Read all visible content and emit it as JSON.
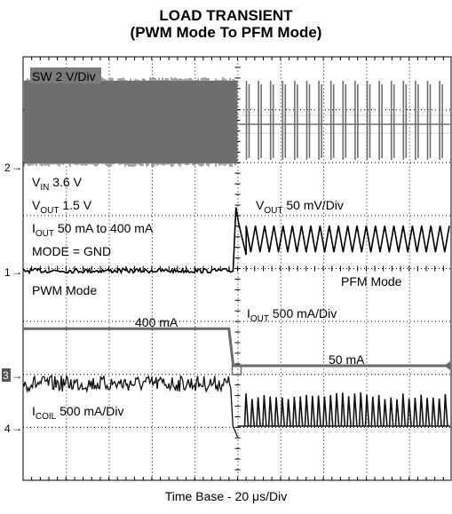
{
  "title": {
    "line1": "LOAD TRANSIENT",
    "line2": "(PWM Mode To PFM Mode)"
  },
  "timebase": {
    "prefix": "Time Base - 20 ",
    "mu": "μ",
    "suffix": "s/Div"
  },
  "chart_data": {
    "type": "line",
    "x": {
      "unit": "us",
      "per_division": 20,
      "divisions": 10,
      "range": [
        0,
        200
      ],
      "load_step_at": 100
    },
    "grid": true,
    "series": [
      {
        "name": "SW",
        "marker": "2",
        "scale": "2 V/Div",
        "segments": [
          {
            "x_range": [
              0,
              100
            ],
            "behavior": "continuous PWM switching (dense band)"
          },
          {
            "x_range": [
              100,
              200
            ],
            "behavior": "PFM burst switching"
          }
        ]
      },
      {
        "name": "VOUT",
        "marker": "1",
        "scale": "50 mV/Div",
        "segments": [
          {
            "x_range": [
              0,
              98
            ],
            "behavior": "flat with noise"
          },
          {
            "x_range": [
              98,
              104
            ],
            "behavior": "overshoot spike ~ +1.2 div"
          },
          {
            "x_range": [
              104,
              200
            ],
            "behavior": "PFM ripple ~0.5 div peak-to-peak, offset +0.6 div"
          }
        ]
      },
      {
        "name": "IOUT",
        "marker": "3",
        "scale": "500 mA/Div",
        "levels": [
          {
            "x_range": [
              0,
              96
            ],
            "value_mA": 400
          },
          {
            "x_range": [
              98,
              200
            ],
            "value_mA": 50
          }
        ]
      },
      {
        "name": "ICOIL",
        "marker": "4",
        "scale": "500 mA/Div",
        "segments": [
          {
            "x_range": [
              0,
              97
            ],
            "behavior": "dense switching band around 400 mA"
          },
          {
            "x_range": [
              97,
              100
            ],
            "behavior": "drop to zero"
          },
          {
            "x_range": [
              100,
              200
            ],
            "behavior": "PFM current pulses"
          }
        ]
      }
    ]
  },
  "labels": {
    "sw": "SW 2 V/Div",
    "vin_main": "V",
    "vin_sub": "IN",
    "vin_val": " 3.6 V",
    "vout_main": "V",
    "vout_sub": "OUT",
    "vout_val": " 1.5 V",
    "iout_main": "I",
    "iout_sub": "OUT",
    "iout_val": "  50 mA to 400 mA",
    "mode": "MODE = GND",
    "vout_scale_main": "V",
    "vout_scale_sub": "OUT",
    "vout_scale_val": " 50 mV/Div",
    "pwm_mode": "PWM Mode",
    "pfm_mode": "PFM Mode",
    "iout_scale_main": "I",
    "iout_scale_sub": "OUT",
    "iout_scale_val": " 500 mA/Div",
    "level_400": "400 mA",
    "level_50": "50 mA",
    "icoil_main": "I",
    "icoil_sub": "COIL",
    "icoil_val": " 500 mA/Div"
  },
  "markers": {
    "ch1": "1",
    "ch2": "2",
    "ch3": "3",
    "ch4": "4"
  },
  "colors": {
    "sw_trace": "#6e6e6e",
    "icoil_trace": "#111111",
    "vout_trace": "#000000",
    "iout_trace": "#6a6a6a",
    "grid": "#000000",
    "ch3_marker_bg": "#555555"
  }
}
